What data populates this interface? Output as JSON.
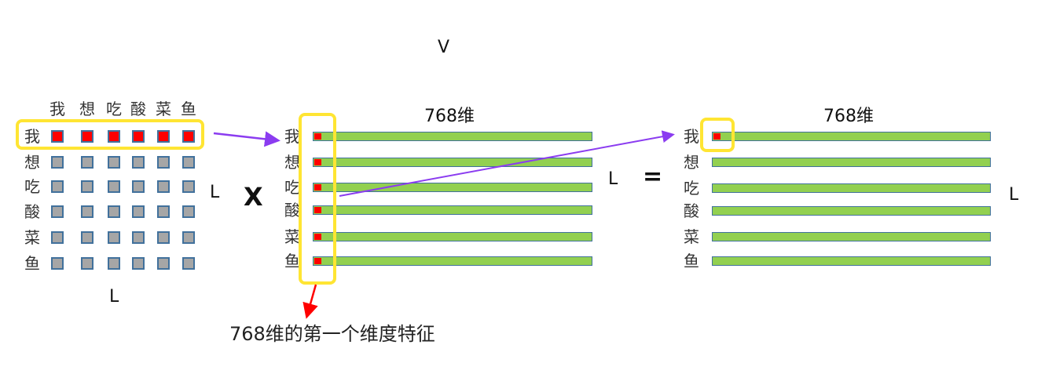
{
  "words": [
    "我",
    "想",
    "吃",
    "酸",
    "菜",
    "鱼"
  ],
  "top_label": "V",
  "dim_label": "768维",
  "length_label": "L",
  "multiply_symbol": "X",
  "equals_symbol": "=",
  "caption": "768维的第一个维度特征",
  "colors": {
    "highlight_box": "#ffe533",
    "selected_cell": "#ff0000",
    "cell": "#a6a6a6",
    "vector": "#92d050",
    "border": "#41719c",
    "arrow_purple": "#8b3cf0",
    "arrow_red": "#ff0000"
  }
}
